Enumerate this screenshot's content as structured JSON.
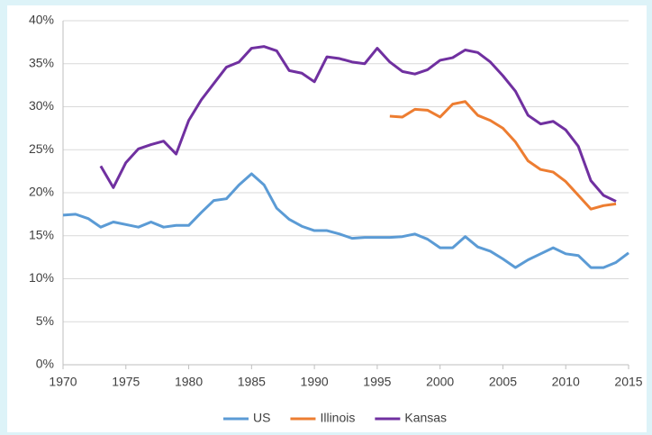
{
  "chart_data": {
    "type": "line",
    "x": [
      1970,
      1971,
      1972,
      1973,
      1974,
      1975,
      1976,
      1977,
      1978,
      1979,
      1980,
      1981,
      1982,
      1983,
      1984,
      1985,
      1986,
      1987,
      1988,
      1989,
      1990,
      1991,
      1992,
      1993,
      1994,
      1995,
      1996,
      1997,
      1998,
      1999,
      2000,
      2001,
      2002,
      2003,
      2004,
      2005,
      2006,
      2007,
      2008,
      2009,
      2010,
      2011,
      2012,
      2013,
      2014,
      2015
    ],
    "series": [
      {
        "name": "US",
        "color": "#5b9bd5",
        "values": [
          17.4,
          17.5,
          17.0,
          16.0,
          16.6,
          16.3,
          16.0,
          16.6,
          16.0,
          16.2,
          16.2,
          17.7,
          19.1,
          19.3,
          20.9,
          22.2,
          20.9,
          18.2,
          16.9,
          16.1,
          15.6,
          15.6,
          15.2,
          14.7,
          14.8,
          14.8,
          14.8,
          14.9,
          15.2,
          14.6,
          13.6,
          13.6,
          14.9,
          13.7,
          13.2,
          12.3,
          11.3,
          12.2,
          12.9,
          13.6,
          12.9,
          12.7,
          11.3,
          11.3,
          11.9,
          13.0
        ]
      },
      {
        "name": "Illinois",
        "color": "#ed7d31",
        "values": [
          null,
          null,
          null,
          null,
          null,
          null,
          null,
          null,
          null,
          null,
          null,
          null,
          null,
          null,
          null,
          null,
          null,
          null,
          null,
          null,
          null,
          null,
          null,
          null,
          null,
          null,
          28.9,
          28.8,
          29.7,
          29.6,
          28.8,
          30.3,
          30.6,
          29.0,
          28.4,
          27.5,
          25.9,
          23.7,
          22.7,
          22.4,
          21.3,
          19.7,
          18.1,
          18.5,
          18.7,
          null
        ]
      },
      {
        "name": "Kansas",
        "color": "#7030a0",
        "values": [
          null,
          null,
          null,
          23.1,
          20.6,
          23.5,
          25.1,
          25.6,
          26.0,
          24.5,
          28.4,
          30.8,
          32.7,
          34.6,
          35.2,
          36.8,
          37.0,
          36.5,
          34.2,
          33.9,
          32.9,
          35.8,
          35.6,
          35.2,
          35.0,
          36.8,
          35.2,
          34.1,
          33.8,
          34.3,
          35.4,
          35.7,
          36.6,
          36.3,
          35.2,
          33.6,
          31.8,
          29.0,
          28.0,
          28.3,
          27.3,
          25.4,
          21.4,
          19.7,
          19.0,
          null
        ]
      }
    ],
    "xlim": [
      1970,
      2015
    ],
    "xticks": [
      1970,
      1975,
      1980,
      1985,
      1990,
      1995,
      2000,
      2005,
      2010,
      2015
    ],
    "ylim": [
      0,
      40
    ],
    "yticks": [
      {
        "value": 0,
        "label": "0%"
      },
      {
        "value": 5,
        "label": "5%"
      },
      {
        "value": 10,
        "label": "10%"
      },
      {
        "value": 15,
        "label": "15%"
      },
      {
        "value": 20,
        "label": "20%"
      },
      {
        "value": 25,
        "label": "25%"
      },
      {
        "value": 30,
        "label": "30%"
      },
      {
        "value": 35,
        "label": "35%"
      },
      {
        "value": 40,
        "label": "40%"
      }
    ],
    "grid": true,
    "legend": "bottom"
  }
}
